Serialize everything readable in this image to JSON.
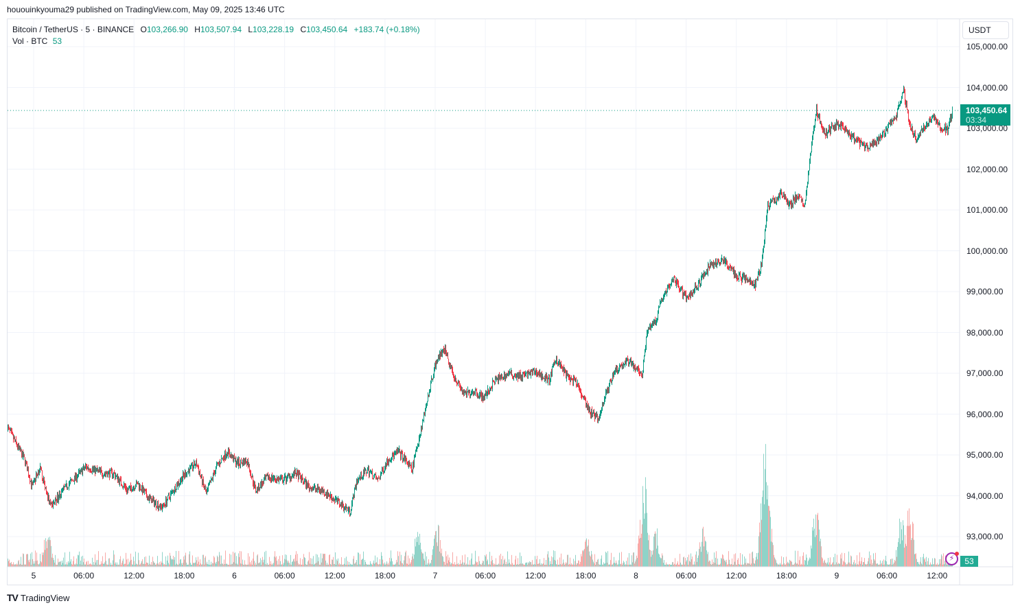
{
  "header": {
    "published": "hououinkyouma29 published on TradingView.com, May 09, 2025 13:46 UTC"
  },
  "legend": {
    "symbol": "Bitcoin / TetherUS · 5 · BINANCE",
    "o_label": "O",
    "o": "103,266.90",
    "h_label": "H",
    "h": "103,507.94",
    "l_label": "L",
    "l": "103,228.19",
    "c_label": "C",
    "c": "103,450.64",
    "change": "+183.74 (+0.18%)",
    "vol_label": "Vol · BTC",
    "vol": "53"
  },
  "currency": "USDT",
  "last_price": {
    "price": "103,450.64",
    "countdown": "03:34",
    "volume": "53"
  },
  "brand": {
    "logo": "TV",
    "name": "TradingView"
  },
  "colors": {
    "up": "#089981",
    "down": "#f23645",
    "vol_up": "#8fd3c8",
    "vol_down": "#f7a9a7",
    "grid": "#f0f3fa"
  },
  "chart_data": {
    "type": "candlestick",
    "symbol": "BTCUSDT",
    "interval_minutes": 5,
    "x_unit": "hours since May 5 00:00 UTC",
    "ylim": [
      92400,
      105500
    ],
    "y_ticks": [
      "105,000.00",
      "104,000.00",
      "103,000.00",
      "102,000.00",
      "101,000.00",
      "100,000.00",
      "99,000.00",
      "98,000.00",
      "97,000.00",
      "96,000.00",
      "95,000.00",
      "94,000.00",
      "93,000.00"
    ],
    "y_tick_values": [
      105000,
      104000,
      103000,
      102000,
      101000,
      100000,
      99000,
      98000,
      97000,
      96000,
      95000,
      94000,
      93000
    ],
    "x_ticks": [
      {
        "h": 0,
        "label": "5"
      },
      {
        "h": 6,
        "label": "06:00"
      },
      {
        "h": 12,
        "label": "12:00"
      },
      {
        "h": 18,
        "label": "18:00"
      },
      {
        "h": 24,
        "label": "6"
      },
      {
        "h": 30,
        "label": "06:00"
      },
      {
        "h": 36,
        "label": "12:00"
      },
      {
        "h": 42,
        "label": "18:00"
      },
      {
        "h": 48,
        "label": "7"
      },
      {
        "h": 54,
        "label": "06:00"
      },
      {
        "h": 60,
        "label": "12:00"
      },
      {
        "h": 66,
        "label": "18:00"
      },
      {
        "h": 72,
        "label": "8"
      },
      {
        "h": 78,
        "label": "06:00"
      },
      {
        "h": 84,
        "label": "12:00"
      },
      {
        "h": 90,
        "label": "18:00"
      },
      {
        "h": 96,
        "label": "9"
      },
      {
        "h": 102,
        "label": "06:00"
      },
      {
        "h": 108,
        "label": "12:00"
      }
    ],
    "price_path": [
      [
        -3.2,
        95690
      ],
      [
        -2.0,
        95220
      ],
      [
        -1.1,
        94880
      ],
      [
        -0.2,
        94210
      ],
      [
        0.7,
        94710
      ],
      [
        2.0,
        93710
      ],
      [
        3.4,
        94130
      ],
      [
        5.0,
        94460
      ],
      [
        6.2,
        94710
      ],
      [
        8.3,
        94550
      ],
      [
        9.5,
        94550
      ],
      [
        11.2,
        94130
      ],
      [
        12.4,
        94300
      ],
      [
        13.6,
        93960
      ],
      [
        15.3,
        93710
      ],
      [
        16.9,
        94210
      ],
      [
        18.1,
        94550
      ],
      [
        19.4,
        94800
      ],
      [
        20.6,
        94040
      ],
      [
        21.8,
        94710
      ],
      [
        23.1,
        95080
      ],
      [
        24.3,
        94800
      ],
      [
        25.5,
        94850
      ],
      [
        26.5,
        94130
      ],
      [
        28.0,
        94460
      ],
      [
        29.6,
        94380
      ],
      [
        31.3,
        94550
      ],
      [
        32.9,
        94210
      ],
      [
        34.5,
        94130
      ],
      [
        36.2,
        93870
      ],
      [
        37.8,
        93620
      ],
      [
        38.6,
        94380
      ],
      [
        39.9,
        94630
      ],
      [
        41.1,
        94380
      ],
      [
        42.3,
        94880
      ],
      [
        43.6,
        95080
      ],
      [
        45.2,
        94630
      ],
      [
        46.0,
        95390
      ],
      [
        46.9,
        96230
      ],
      [
        48.1,
        97320
      ],
      [
        49.1,
        97570
      ],
      [
        50.1,
        96990
      ],
      [
        51.4,
        96480
      ],
      [
        52.6,
        96570
      ],
      [
        53.8,
        96400
      ],
      [
        55.1,
        96820
      ],
      [
        56.7,
        96990
      ],
      [
        58.3,
        96930
      ],
      [
        60.0,
        97030
      ],
      [
        61.6,
        96820
      ],
      [
        62.4,
        97370
      ],
      [
        63.7,
        96930
      ],
      [
        64.9,
        96730
      ],
      [
        66.4,
        96060
      ],
      [
        67.5,
        95890
      ],
      [
        68.2,
        96400
      ],
      [
        69.4,
        97070
      ],
      [
        71.1,
        97320
      ],
      [
        72.7,
        96990
      ],
      [
        73.3,
        98080
      ],
      [
        74.3,
        98250
      ],
      [
        74.9,
        98750
      ],
      [
        76.4,
        99340
      ],
      [
        78.0,
        98830
      ],
      [
        79.7,
        99250
      ],
      [
        80.9,
        99670
      ],
      [
        82.5,
        99760
      ],
      [
        83.8,
        99420
      ],
      [
        85.4,
        99250
      ],
      [
        86.2,
        99170
      ],
      [
        87.0,
        99670
      ],
      [
        87.7,
        101100
      ],
      [
        88.7,
        101270
      ],
      [
        89.5,
        101440
      ],
      [
        90.3,
        101100
      ],
      [
        91.2,
        101350
      ],
      [
        92.1,
        101100
      ],
      [
        92.8,
        102280
      ],
      [
        93.5,
        103460
      ],
      [
        94.5,
        102870
      ],
      [
        96.1,
        103120
      ],
      [
        97.7,
        102790
      ],
      [
        99.4,
        102530
      ],
      [
        100.6,
        102620
      ],
      [
        101.8,
        102950
      ],
      [
        103.1,
        103290
      ],
      [
        103.9,
        103960
      ],
      [
        104.7,
        103120
      ],
      [
        105.5,
        102700
      ],
      [
        106.3,
        103030
      ],
      [
        107.4,
        103290
      ],
      [
        108.4,
        103030
      ],
      [
        109.2,
        102950
      ],
      [
        109.8,
        103450.64
      ]
    ],
    "volume_spikes_btc": [
      [
        1.6,
        400
      ],
      [
        45.9,
        430
      ],
      [
        48.2,
        470
      ],
      [
        66.1,
        370
      ],
      [
        72.9,
        1010
      ],
      [
        74.4,
        390
      ],
      [
        80.0,
        420
      ],
      [
        87.3,
        1330
      ],
      [
        87.7,
        900
      ],
      [
        93.5,
        720
      ],
      [
        103.7,
        590
      ],
      [
        104.7,
        690
      ]
    ],
    "last_volume": 53
  }
}
